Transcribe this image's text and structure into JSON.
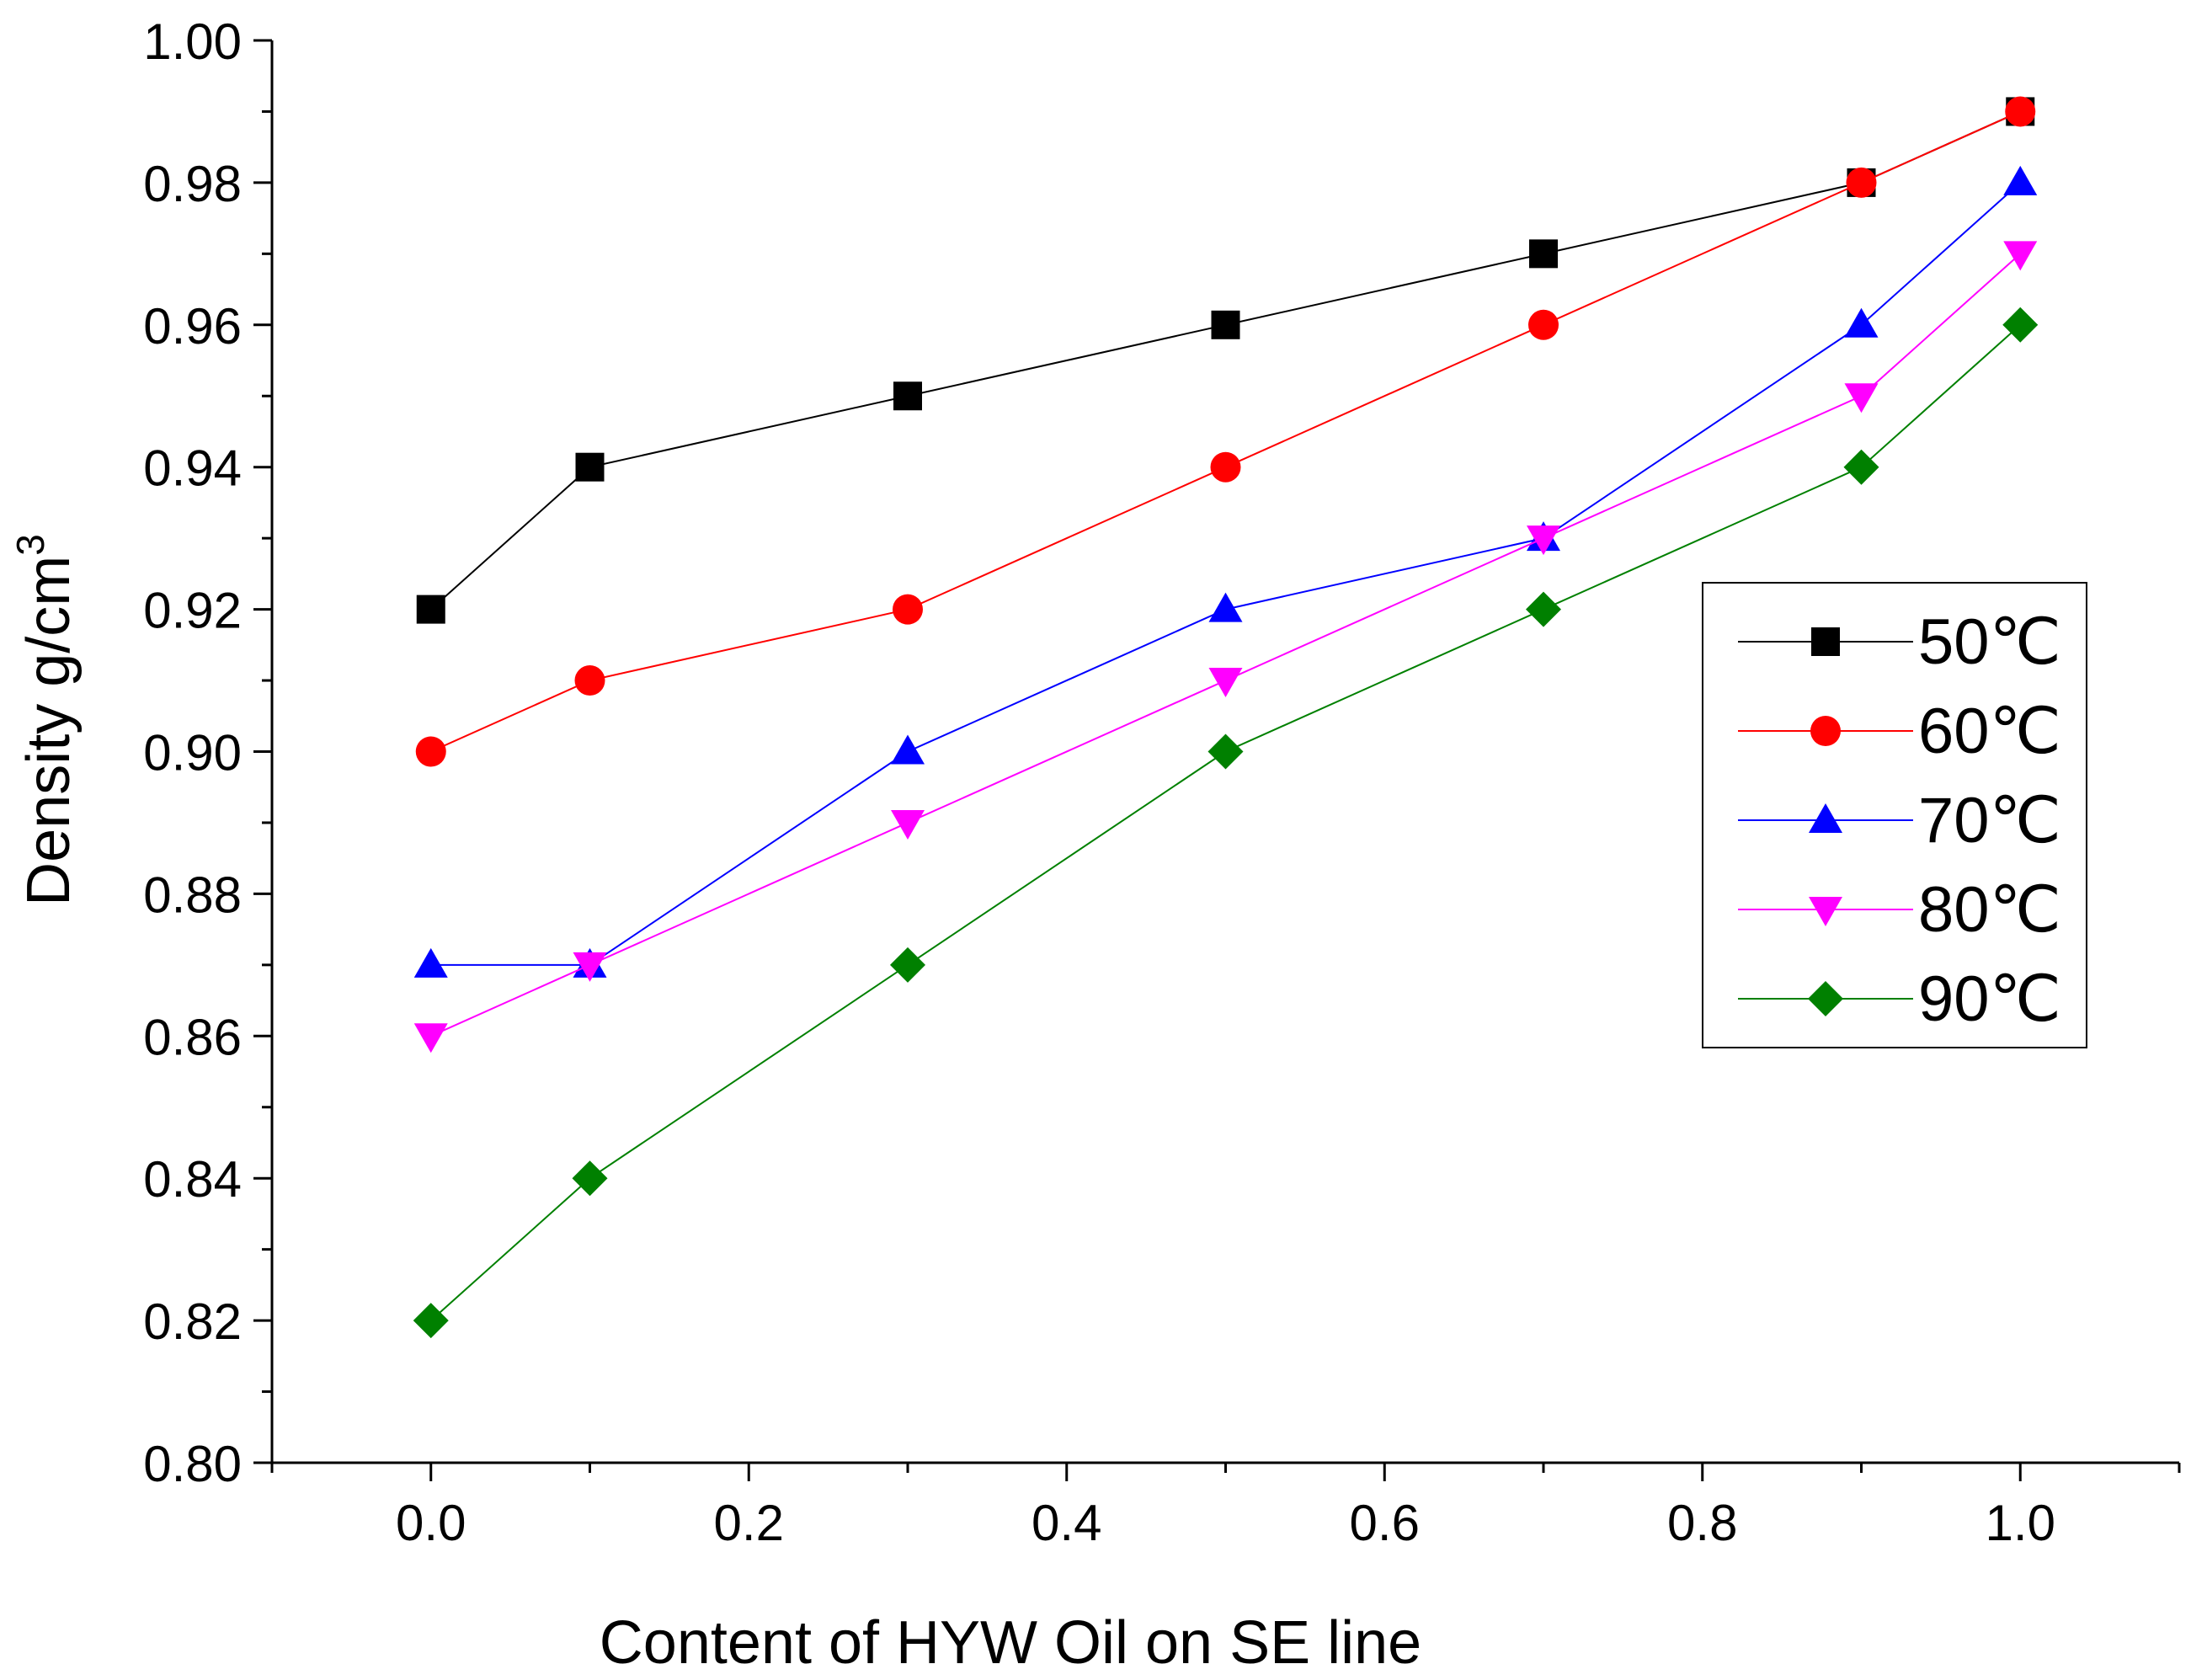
{
  "chart_data": {
    "type": "line",
    "title": "",
    "xlabel": "Content of HYW Oil on SE line",
    "ylabel": {
      "text": "Density g/cm",
      "superscript": "3"
    },
    "xlim": [
      -0.1,
      1.1
    ],
    "ylim": [
      0.8,
      1.0
    ],
    "xticks": [
      "0.0",
      "0.2",
      "0.4",
      "0.6",
      "0.8",
      "1.0"
    ],
    "xtick_values": [
      0.0,
      0.2,
      0.4,
      0.6,
      0.8,
      1.0
    ],
    "yticks": [
      "0.80",
      "0.82",
      "0.84",
      "0.86",
      "0.88",
      "0.90",
      "0.92",
      "0.94",
      "0.96",
      "0.98",
      "1.00"
    ],
    "ytick_values": [
      0.8,
      0.82,
      0.84,
      0.86,
      0.88,
      0.9,
      0.92,
      0.94,
      0.96,
      0.98,
      1.0
    ],
    "grid": false,
    "legend_position": "right",
    "x": [
      0.0,
      0.1,
      0.3,
      0.5,
      0.7,
      0.9,
      1.0
    ],
    "series": [
      {
        "name": "50℃",
        "color": "#000000",
        "marker": "square",
        "values": [
          0.92,
          0.94,
          0.95,
          0.96,
          0.97,
          0.98,
          0.99
        ]
      },
      {
        "name": "60℃",
        "color": "#ff0000",
        "marker": "circle",
        "values": [
          0.9,
          0.91,
          0.92,
          0.94,
          0.96,
          0.98,
          0.99
        ]
      },
      {
        "name": "70℃",
        "color": "#0000ff",
        "marker": "triangle-up",
        "values": [
          0.87,
          0.87,
          0.9,
          0.92,
          0.93,
          0.96,
          0.98
        ]
      },
      {
        "name": "80℃",
        "color": "#ff00ff",
        "marker": "triangle-down",
        "values": [
          0.86,
          0.87,
          0.89,
          0.91,
          0.93,
          0.95,
          0.97
        ]
      },
      {
        "name": "90℃",
        "color": "#008000",
        "marker": "diamond",
        "values": [
          0.82,
          0.84,
          0.87,
          0.9,
          0.92,
          0.94,
          0.96
        ]
      }
    ]
  }
}
